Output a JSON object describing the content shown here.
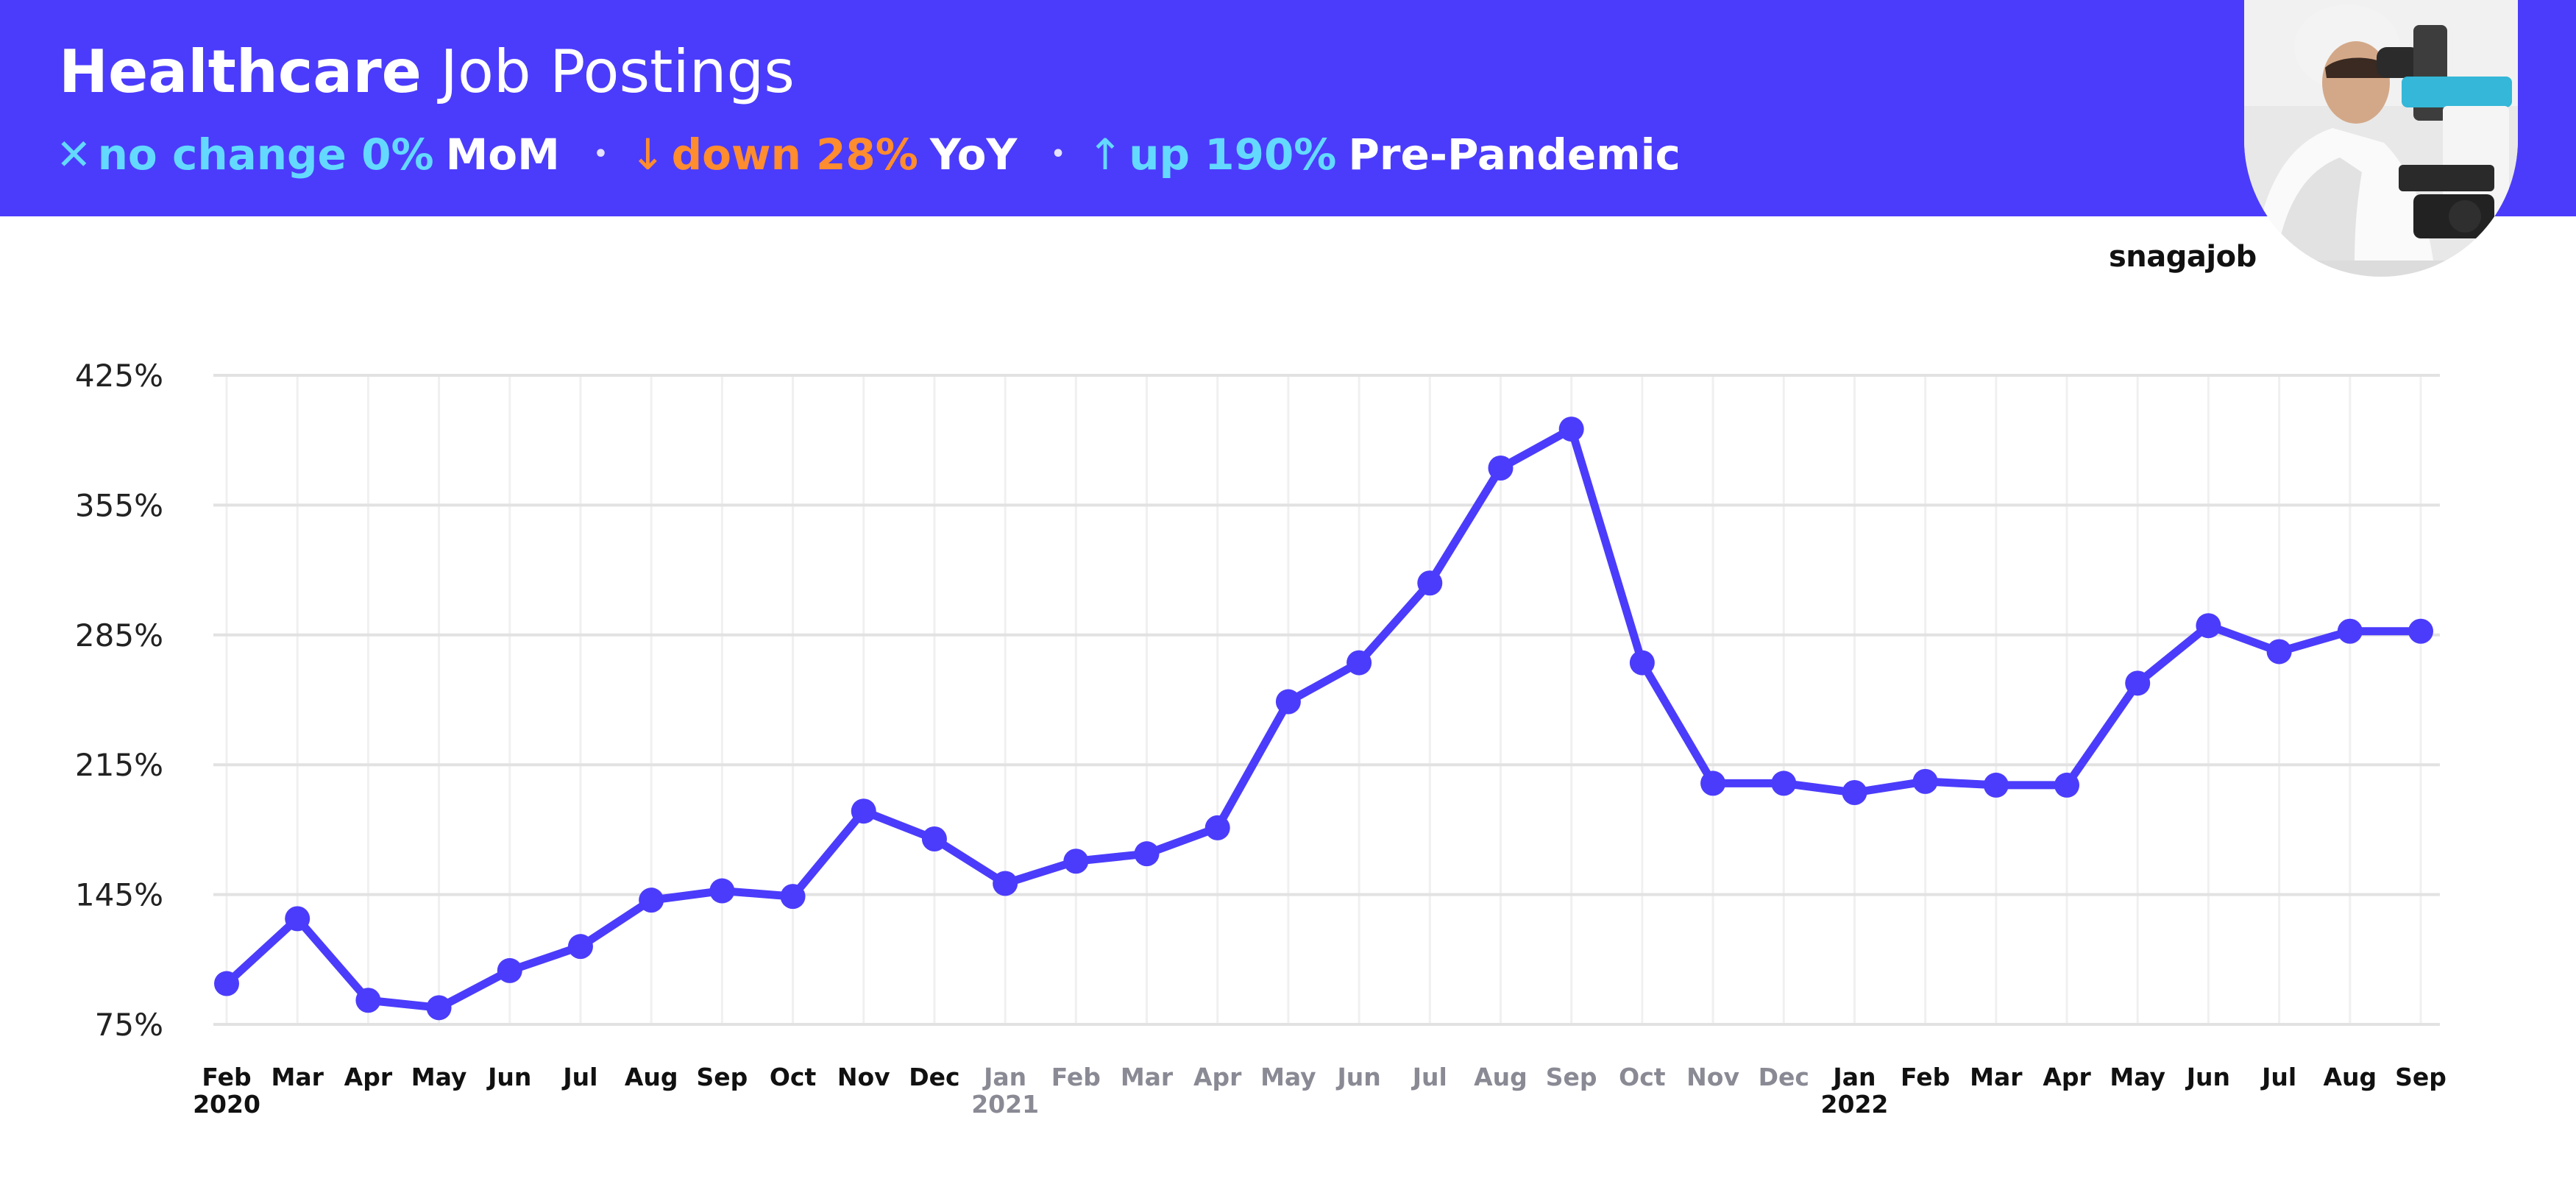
{
  "header": {
    "title_bold": "Healthcare",
    "title_rest": "Job Postings",
    "stats": [
      {
        "glyph": "✕",
        "text": "no change 0%",
        "suffix": "MoM",
        "color": "#64d9ff"
      },
      {
        "glyph": "↓",
        "text": "down 28%",
        "suffix": "YoY",
        "color": "#ff8c2e"
      },
      {
        "glyph": "↑",
        "text": "up 190%",
        "suffix": "Pre-Pandemic",
        "color": "#64d9ff"
      }
    ],
    "separator": "•"
  },
  "brand": "snagajob",
  "photo_icon": "lab-technician-microscope-photo",
  "chart_data": {
    "type": "line",
    "title": "",
    "xlabel": "",
    "ylabel": "",
    "x": [
      "Feb 2020",
      "Mar 2020",
      "Apr 2020",
      "May 2020",
      "Jun 2020",
      "Jul 2020",
      "Aug 2020",
      "Sep 2020",
      "Oct 2020",
      "Nov 2020",
      "Dec 2020",
      "Jan 2021",
      "Feb 2021",
      "Mar 2021",
      "Apr 2021",
      "May 2021",
      "Jun 2021",
      "Jul 2021",
      "Aug 2021",
      "Sep 2021",
      "Oct 2021",
      "Nov 2021",
      "Dec 2021",
      "Jan 2022",
      "Feb 2022",
      "Mar 2022",
      "Apr 2022",
      "May 2022",
      "Jun 2022",
      "Jul 2022",
      "Aug 2022",
      "Sep 2022"
    ],
    "x_tick_labels": [
      {
        "month": "Feb",
        "year": "2020",
        "faded": false
      },
      {
        "month": "Mar",
        "year": "",
        "faded": false
      },
      {
        "month": "Apr",
        "year": "",
        "faded": false
      },
      {
        "month": "May",
        "year": "",
        "faded": false
      },
      {
        "month": "Jun",
        "year": "",
        "faded": false
      },
      {
        "month": "Jul",
        "year": "",
        "faded": false
      },
      {
        "month": "Aug",
        "year": "",
        "faded": false
      },
      {
        "month": "Sep",
        "year": "",
        "faded": false
      },
      {
        "month": "Oct",
        "year": "",
        "faded": false
      },
      {
        "month": "Nov",
        "year": "",
        "faded": false
      },
      {
        "month": "Dec",
        "year": "",
        "faded": false
      },
      {
        "month": "Jan",
        "year": "2021",
        "faded": true
      },
      {
        "month": "Feb",
        "year": "",
        "faded": true
      },
      {
        "month": "Mar",
        "year": "",
        "faded": true
      },
      {
        "month": "Apr",
        "year": "",
        "faded": true
      },
      {
        "month": "May",
        "year": "",
        "faded": true
      },
      {
        "month": "Jun",
        "year": "",
        "faded": true
      },
      {
        "month": "Jul",
        "year": "",
        "faded": true
      },
      {
        "month": "Aug",
        "year": "",
        "faded": true
      },
      {
        "month": "Sep",
        "year": "",
        "faded": true
      },
      {
        "month": "Oct",
        "year": "",
        "faded": true
      },
      {
        "month": "Nov",
        "year": "",
        "faded": true
      },
      {
        "month": "Dec",
        "year": "",
        "faded": true
      },
      {
        "month": "Jan",
        "year": "2022",
        "faded": false
      },
      {
        "month": "Feb",
        "year": "",
        "faded": false
      },
      {
        "month": "Mar",
        "year": "",
        "faded": false
      },
      {
        "month": "Apr",
        "year": "",
        "faded": false
      },
      {
        "month": "May",
        "year": "",
        "faded": false
      },
      {
        "month": "Jun",
        "year": "",
        "faded": false
      },
      {
        "month": "Jul",
        "year": "",
        "faded": false
      },
      {
        "month": "Aug",
        "year": "",
        "faded": false
      },
      {
        "month": "Sep",
        "year": "",
        "faded": false
      }
    ],
    "series": [
      {
        "values": [
          97,
          132,
          88,
          84,
          104,
          117,
          142,
          147,
          144,
          190,
          175,
          151,
          163,
          167,
          181,
          249,
          270,
          313,
          375,
          396,
          270,
          205,
          205,
          200,
          206,
          204,
          204,
          259,
          290,
          276,
          287,
          287
        ]
      }
    ],
    "y_ticks": [
      75,
      145,
      215,
      285,
      355,
      425
    ],
    "y_tick_format": "{v}%",
    "ylim": [
      75,
      425
    ],
    "grid": true,
    "legend": "none",
    "line_color": "#4b3cfb",
    "faded_label_color": "#8a8a95",
    "label_color": "#111111"
  }
}
